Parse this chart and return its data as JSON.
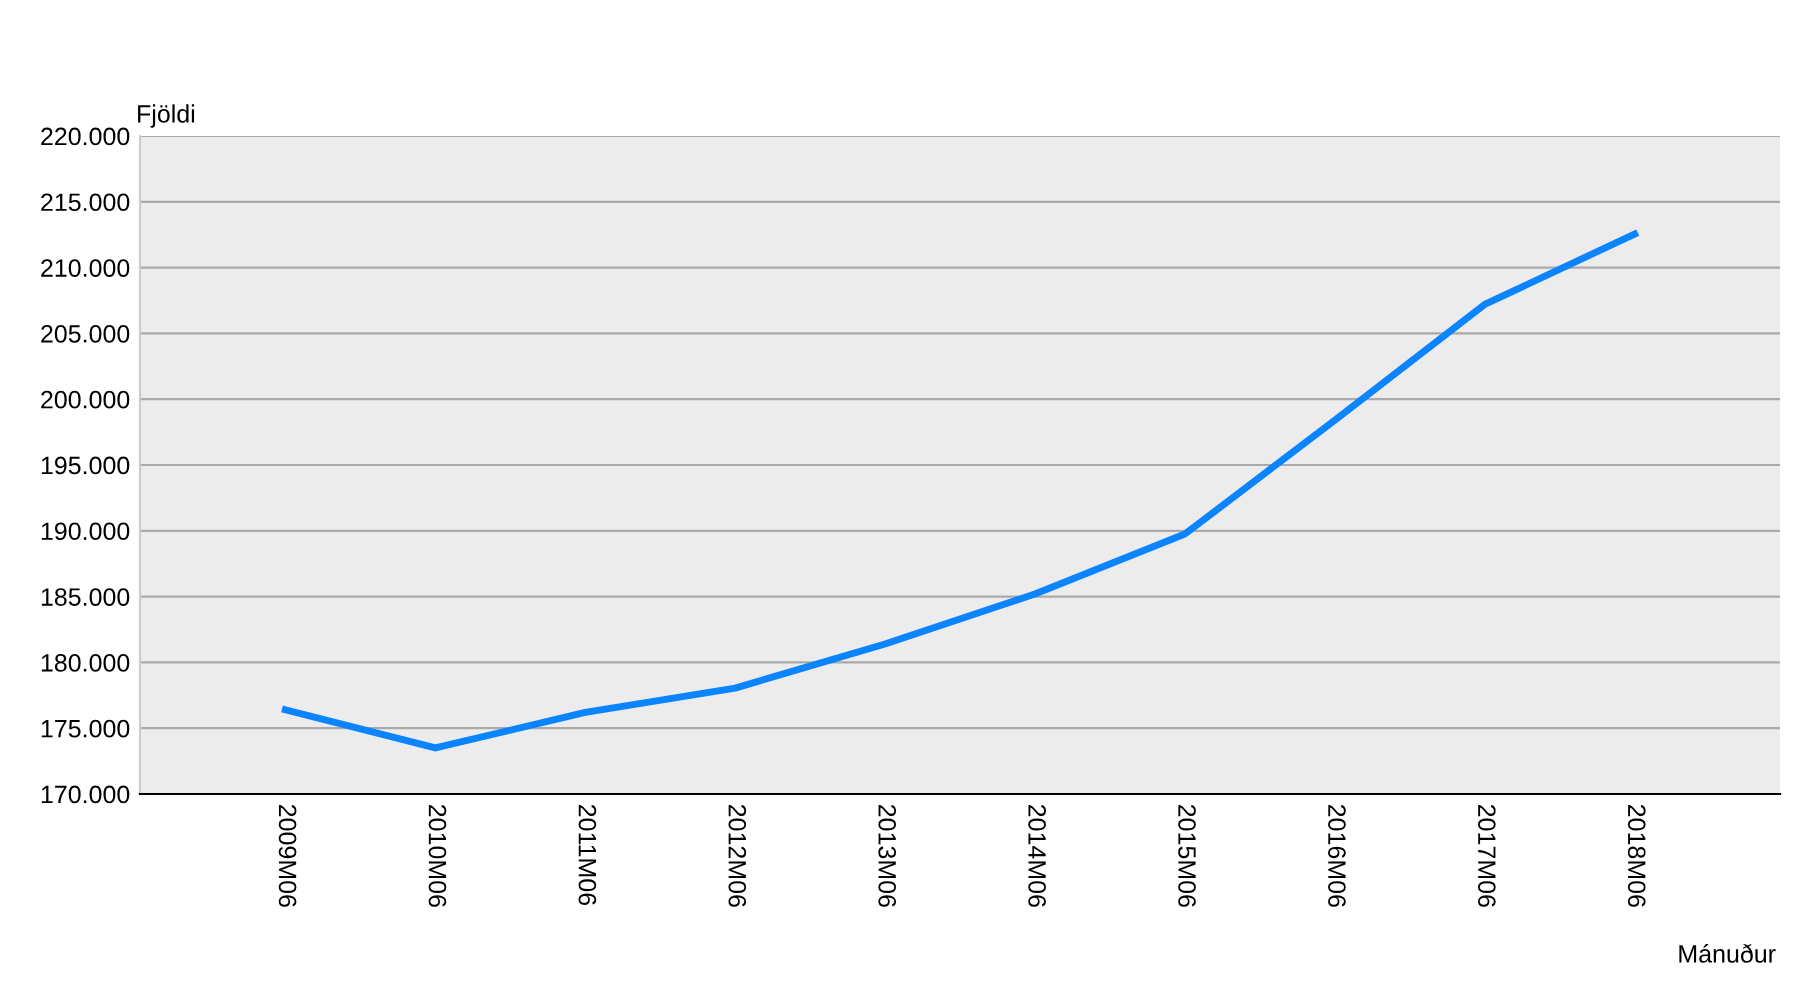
{
  "chart_data": {
    "type": "line",
    "xlabel": "Mánuður",
    "ylabel": "Fjöldi",
    "categories": [
      "2009M06",
      "2010M06",
      "2011M06",
      "2012M06",
      "2013M06",
      "2014M06",
      "2015M06",
      "2016M06",
      "2017M06",
      "2018M06"
    ],
    "series": [
      {
        "color": "#0a84ff",
        "values": [
          176400,
          173500,
          176200,
          178050,
          181400,
          185200,
          189750,
          198400,
          207200,
          212550
        ]
      }
    ],
    "ylim": [
      170000,
      220000
    ],
    "yticks": [
      {
        "value": 170000,
        "label": "170.000"
      },
      {
        "value": 175000,
        "label": "175.000"
      },
      {
        "value": 180000,
        "label": "180.000"
      },
      {
        "value": 185000,
        "label": "185.000"
      },
      {
        "value": 190000,
        "label": "190.000"
      },
      {
        "value": 195000,
        "label": "195.000"
      },
      {
        "value": 200000,
        "label": "200.000"
      },
      {
        "value": 205000,
        "label": "205.000"
      },
      {
        "value": 210000,
        "label": "210.000"
      },
      {
        "value": 215000,
        "label": "215.000"
      },
      {
        "value": 220000,
        "label": "220.000"
      }
    ],
    "grid": "y",
    "legend": false,
    "marker": "none",
    "line_style": "solid"
  }
}
